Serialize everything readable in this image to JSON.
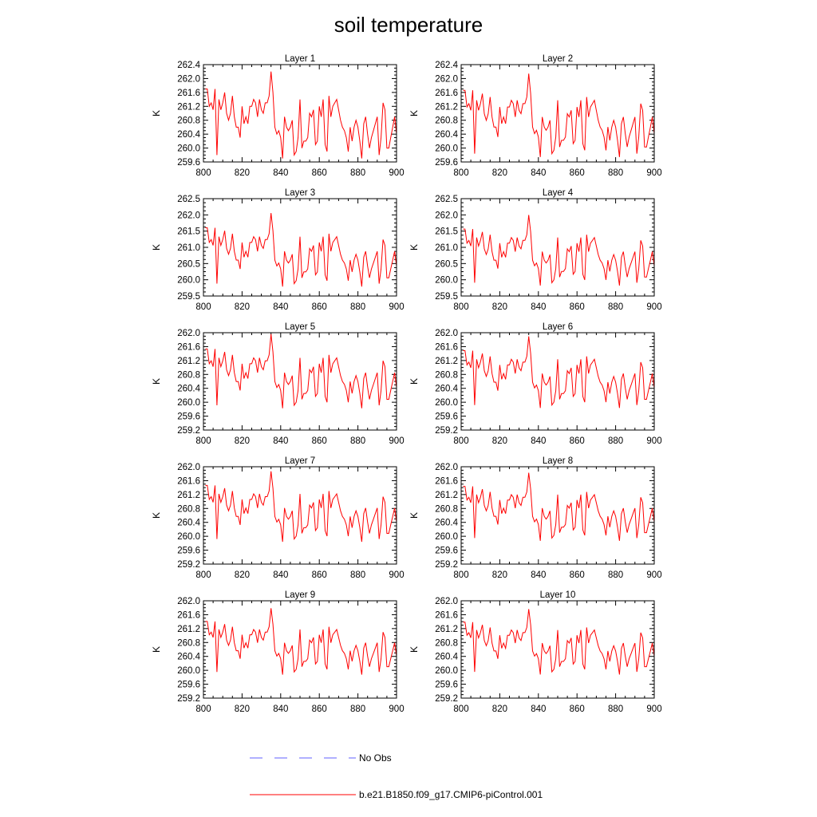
{
  "colors": {
    "model": "#ff0000",
    "obs": "#6060ff"
  },
  "chart_data": {
    "type": "line",
    "title": "soil temperature",
    "xlim": [
      800,
      900
    ],
    "xticks": [
      800,
      820,
      840,
      860,
      880,
      900
    ],
    "ylabel": "K",
    "grid": false,
    "legend": {
      "placement": "bottom",
      "entries": [
        {
          "label": "No Obs",
          "style": "dashed",
          "color": "#6060ff"
        },
        {
          "label": "b.e21.B1850.f09_g17.CMIP6-piControl.001",
          "style": "solid",
          "color": "#ff0000"
        }
      ]
    },
    "panels": [
      {
        "title": "Layer 1",
        "ylim": [
          259.6,
          262.4
        ],
        "yticks": [
          "262.4",
          "262.0",
          "261.6",
          "261.2",
          "260.8",
          "260.4",
          "260.0",
          "259.6"
        ],
        "base": [
          261.72,
          260.02
        ]
      },
      {
        "title": "Layer 2",
        "ylim": [
          259.6,
          262.4
        ],
        "yticks": [
          "262.4",
          "262.0",
          "261.6",
          "261.2",
          "260.8",
          "260.4",
          "260.0",
          "259.6"
        ],
        "base": [
          261.68,
          260.05
        ]
      },
      {
        "title": "Layer 3",
        "ylim": [
          259.5,
          262.5
        ],
        "yticks": [
          "262.5",
          "262.0",
          "261.5",
          "261.0",
          "260.5",
          "260.0",
          "259.5"
        ],
        "base": [
          261.62,
          260.08
        ]
      },
      {
        "title": "Layer 4",
        "ylim": [
          259.5,
          262.5
        ],
        "yticks": [
          "262.5",
          "262.0",
          "261.5",
          "261.0",
          "260.5",
          "260.0",
          "259.5"
        ],
        "base": [
          261.58,
          260.1
        ]
      },
      {
        "title": "Layer 5",
        "ylim": [
          259.2,
          262.0
        ],
        "yticks": [
          "262.0",
          "261.6",
          "261.2",
          "260.8",
          "260.4",
          "260.0",
          "259.6",
          "259.2"
        ],
        "base": [
          261.55,
          260.1
        ]
      },
      {
        "title": "Layer 6",
        "ylim": [
          259.2,
          262.0
        ],
        "yticks": [
          "262.0",
          "261.6",
          "261.2",
          "260.8",
          "260.4",
          "260.0",
          "259.6",
          "259.2"
        ],
        "base": [
          261.5,
          260.1
        ]
      },
      {
        "title": "Layer 7",
        "ylim": [
          259.2,
          262.0
        ],
        "yticks": [
          "262.0",
          "261.6",
          "261.2",
          "260.8",
          "260.4",
          "260.0",
          "259.6",
          "259.2"
        ],
        "base": [
          261.48,
          260.1
        ]
      },
      {
        "title": "Layer 8",
        "ylim": [
          259.2,
          262.0
        ],
        "yticks": [
          "262.0",
          "261.6",
          "261.2",
          "260.8",
          "260.4",
          "260.0",
          "259.6",
          "259.2"
        ],
        "base": [
          261.45,
          260.12
        ]
      },
      {
        "title": "Layer 9",
        "ylim": [
          259.2,
          262.0
        ],
        "yticks": [
          "262.0",
          "261.6",
          "261.2",
          "260.8",
          "260.4",
          "260.0",
          "259.6",
          "259.2"
        ],
        "base": [
          261.42,
          260.12
        ]
      },
      {
        "title": "Layer 10",
        "ylim": [
          259.2,
          262.0
        ],
        "yticks": [
          "262.0",
          "261.6",
          "261.2",
          "260.8",
          "260.4",
          "260.0",
          "259.6",
          "259.2"
        ],
        "base": [
          261.4,
          260.12
        ]
      }
    ],
    "series": [
      {
        "name": "b.e21.B1850.f09_g17.CMIP6-piControl.001",
        "x_start": 801,
        "x_step": 1,
        "layer1_values": [
          261.7,
          261.7,
          261.2,
          261.3,
          261.1,
          261.7,
          259.8,
          261.4,
          261.1,
          261.3,
          261.6,
          261.0,
          260.8,
          261.0,
          261.5,
          260.9,
          260.6,
          260.6,
          260.3,
          261.2,
          260.7,
          260.9,
          260.7,
          261.2,
          261.2,
          261.4,
          261.3,
          260.9,
          261.4,
          261.1,
          261.0,
          261.3,
          261.3,
          261.5,
          262.2,
          261.6,
          260.6,
          260.4,
          260.5,
          260.3,
          259.7,
          260.9,
          260.6,
          260.5,
          260.6,
          260.8,
          259.8,
          259.9,
          260.3,
          261.4,
          260.0,
          260.2,
          260.2,
          260.3,
          261.0,
          260.9,
          261.1,
          260.1,
          260.2,
          261.2,
          260.9,
          261.4,
          260.1,
          259.9,
          261.5,
          260.9,
          261.2,
          261.3,
          261.4,
          261.1,
          260.8,
          260.6,
          260.5,
          260.3,
          259.9,
          260.6,
          260.2,
          260.6,
          260.8,
          260.6,
          260.2,
          259.7,
          260.7,
          260.9,
          260.4,
          260.0,
          260.3,
          260.5,
          260.7,
          260.9,
          259.8,
          260.3,
          261.3,
          261.1,
          260.0,
          260.0,
          260.3,
          260.6,
          260.9,
          260.4
        ]
      }
    ]
  }
}
